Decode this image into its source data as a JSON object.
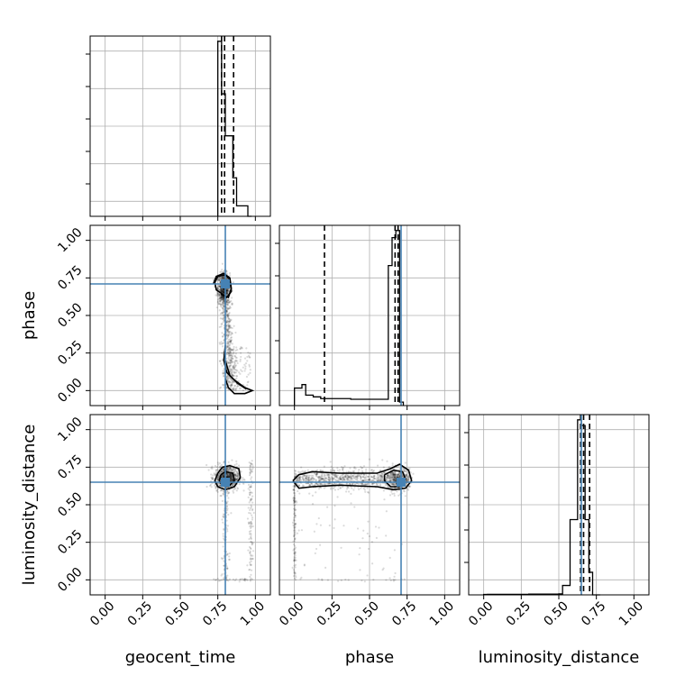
{
  "chart_data": {
    "type": "corner",
    "variables": [
      "geocent_time",
      "phase",
      "luminosity_distance"
    ],
    "axis_range": [
      -0.1,
      1.1
    ],
    "ticks": [
      0.0,
      0.25,
      0.5,
      0.75,
      1.0
    ],
    "tick_labels": [
      "0.00",
      "0.25",
      "0.50",
      "0.75",
      "1.00"
    ],
    "grid": true,
    "truths": {
      "geocent_time": 0.8,
      "phase": 0.71,
      "luminosity_distance": 0.65
    },
    "truth_color": "#4682b4",
    "quantiles": {
      "geocent_time": [
        0.775,
        0.795,
        0.855
      ],
      "phase": [
        0.2,
        0.67,
        0.69
      ],
      "luminosity_distance": [
        0.645,
        0.665,
        0.705
      ]
    },
    "histograms": {
      "geocent_time": {
        "edges": [
          0.75,
          0.775,
          0.8,
          0.85,
          0.875,
          0.95,
          0.975
        ],
        "values": [
          1.0,
          0.7,
          0.46,
          0.22,
          0.06,
          0.0
        ]
      },
      "phase": {
        "edges": [
          0.0,
          0.05,
          0.075,
          0.125,
          0.175,
          0.225,
          0.275,
          0.325,
          0.375,
          0.425,
          0.475,
          0.525,
          0.575,
          0.625,
          0.65,
          0.675,
          0.7,
          0.725
        ],
        "values": [
          0.05,
          0.06,
          0.03,
          0.025,
          0.02,
          0.02,
          0.02,
          0.02,
          0.018,
          0.018,
          0.018,
          0.018,
          0.018,
          0.4,
          0.48,
          0.5,
          0.01
        ]
      },
      "luminosity_distance": {
        "edges": [
          0.0,
          0.025,
          0.3,
          0.375,
          0.5,
          0.525,
          0.575,
          0.625,
          0.65,
          0.675,
          0.7,
          0.725,
          0.775
        ],
        "values": [
          0.002,
          0.003,
          0.004,
          0.004,
          0.005,
          0.05,
          0.4,
          0.93,
          0.9,
          0.4,
          0.12,
          0.0
        ]
      }
    },
    "contours": {
      "geocent_time_vs_phase": [
        [
          [
            0.77,
            0.65
          ],
          [
            0.81,
            0.62
          ],
          [
            0.84,
            0.66
          ],
          [
            0.83,
            0.74
          ],
          [
            0.8,
            0.77
          ],
          [
            0.75,
            0.76
          ],
          [
            0.73,
            0.72
          ],
          [
            0.74,
            0.67
          ],
          [
            0.77,
            0.65
          ]
        ],
        [
          [
            0.77,
            0.64
          ],
          [
            0.82,
            0.62
          ],
          [
            0.84,
            0.68
          ],
          [
            0.83,
            0.75
          ],
          [
            0.79,
            0.78
          ],
          [
            0.74,
            0.76
          ],
          [
            0.72,
            0.71
          ]
        ],
        [
          [
            0.8,
            0.3
          ],
          [
            0.79,
            0.2
          ],
          [
            0.81,
            0.12
          ],
          [
            0.86,
            0.07
          ],
          [
            0.93,
            0.02
          ],
          [
            0.98,
            0.0
          ],
          [
            0.93,
            -0.02
          ],
          [
            0.86,
            -0.02
          ],
          [
            0.82,
            0.02
          ],
          [
            0.8,
            0.08
          ]
        ],
        [
          [
            0.8,
            0.2
          ],
          [
            0.83,
            0.1
          ],
          [
            0.88,
            0.05
          ],
          [
            0.94,
            0.01
          ]
        ]
      ],
      "geocent_time_vs_luminosity_distance": [
        [
          [
            0.75,
            0.71
          ],
          [
            0.78,
            0.75
          ],
          [
            0.83,
            0.76
          ],
          [
            0.89,
            0.74
          ],
          [
            0.9,
            0.68
          ],
          [
            0.86,
            0.62
          ],
          [
            0.8,
            0.6
          ],
          [
            0.75,
            0.62
          ],
          [
            0.73,
            0.66
          ],
          [
            0.75,
            0.71
          ]
        ],
        [
          [
            0.77,
            0.7
          ],
          [
            0.8,
            0.72
          ],
          [
            0.85,
            0.71
          ],
          [
            0.86,
            0.66
          ],
          [
            0.83,
            0.63
          ],
          [
            0.78,
            0.63
          ],
          [
            0.76,
            0.66
          ],
          [
            0.77,
            0.7
          ]
        ]
      ],
      "phase_vs_luminosity_distance": [
        [
          [
            -0.01,
            0.66
          ],
          [
            0.03,
            0.7
          ],
          [
            0.12,
            0.72
          ],
          [
            0.3,
            0.71
          ],
          [
            0.55,
            0.71
          ],
          [
            0.64,
            0.74
          ],
          [
            0.7,
            0.77
          ],
          [
            0.76,
            0.73
          ],
          [
            0.78,
            0.66
          ],
          [
            0.74,
            0.61
          ],
          [
            0.66,
            0.6
          ],
          [
            0.55,
            0.62
          ],
          [
            0.3,
            0.63
          ],
          [
            0.12,
            0.62
          ],
          [
            0.03,
            0.61
          ],
          [
            -0.01,
            0.66
          ]
        ],
        [
          [
            0.6,
            0.7
          ],
          [
            0.66,
            0.73
          ],
          [
            0.72,
            0.72
          ],
          [
            0.74,
            0.67
          ],
          [
            0.7,
            0.62
          ],
          [
            0.64,
            0.62
          ],
          [
            0.6,
            0.66
          ],
          [
            0.6,
            0.7
          ]
        ]
      ]
    },
    "xlabels": [
      "geocent_time",
      "phase",
      "luminosity_distance"
    ],
    "ylabels": [
      "",
      "phase",
      "luminosity_distance"
    ]
  }
}
